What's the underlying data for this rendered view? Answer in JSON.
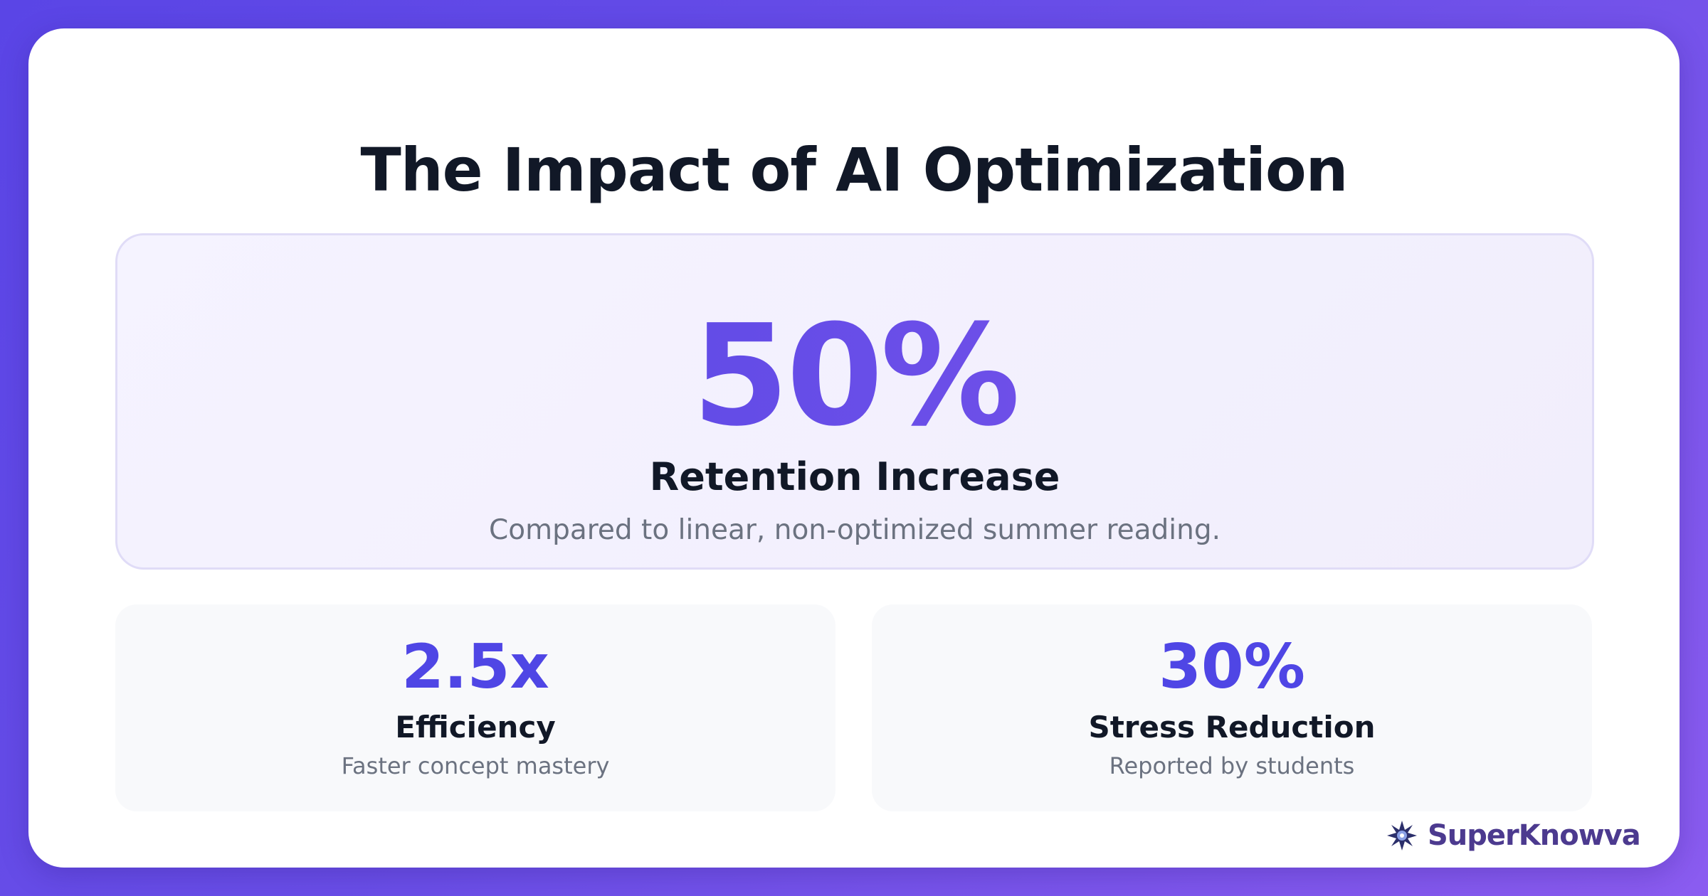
{
  "title": "The Impact of AI Optimization",
  "hero": {
    "value": "50%",
    "label": "Retention Increase",
    "description": "Compared to linear, non-optimized summer reading."
  },
  "stats": [
    {
      "value": "2.5x",
      "label": "Efficiency",
      "description": "Faster concept mastery"
    },
    {
      "value": "30%",
      "label": "Stress Reduction",
      "description": "Reported by students"
    }
  ],
  "brand": "SuperKnowva"
}
